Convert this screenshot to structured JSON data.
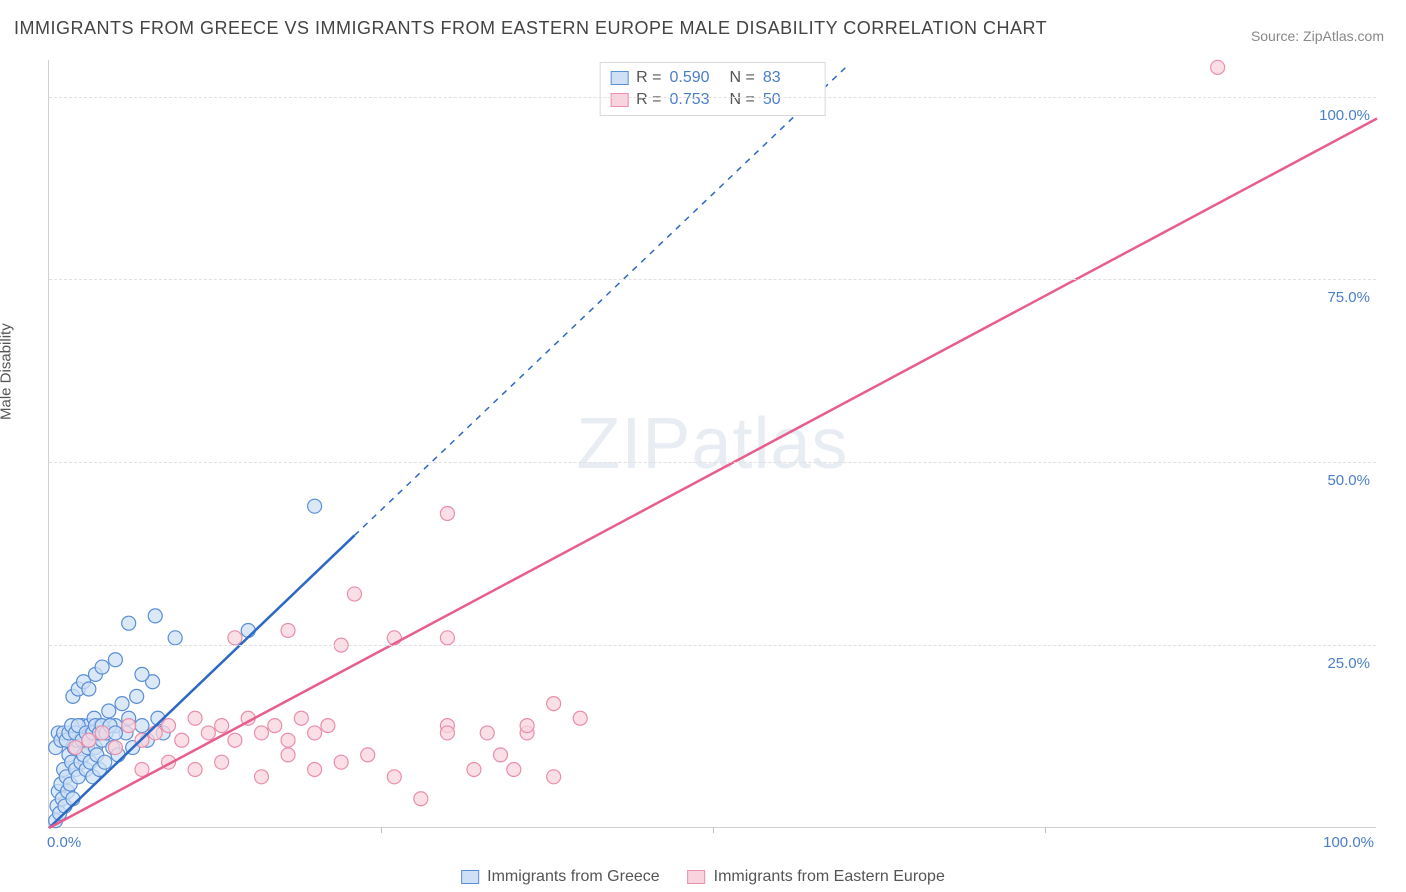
{
  "title": "IMMIGRANTS FROM GREECE VS IMMIGRANTS FROM EASTERN EUROPE MALE DISABILITY CORRELATION CHART",
  "source": "Source: ZipAtlas.com",
  "ylabel": "Male Disability",
  "watermark_a": "ZIP",
  "watermark_b": "atlas",
  "axes": {
    "xmin": 0,
    "xmax": 100,
    "ymin": 0,
    "ymax": 105,
    "x_origin_label": "0.0%",
    "x_max_label": "100.0%",
    "y_ticks": [
      {
        "v": 25,
        "label": "25.0%"
      },
      {
        "v": 50,
        "label": "50.0%"
      },
      {
        "v": 75,
        "label": "75.0%"
      },
      {
        "v": 100,
        "label": "100.0%"
      }
    ],
    "x_tick_step": 25
  },
  "colors": {
    "blue_fill": "#cfe0f5",
    "blue_stroke": "#5a8fd6",
    "blue_line": "#2d68c4",
    "pink_fill": "#f8d4de",
    "pink_stroke": "#e98fab",
    "pink_line": "#e75e8d",
    "grid": "#e0e0e0",
    "label_blue": "#4a7ec7"
  },
  "marker_radius": 7,
  "series": [
    {
      "name": "Immigrants from Greece",
      "color_key": "blue",
      "R": "0.590",
      "N": "83",
      "trend": {
        "x1": 0,
        "y1": 0,
        "x2": 23,
        "y2": 40,
        "solid_to_x": 23,
        "dash_to": {
          "x": 60,
          "y": 104
        }
      },
      "points": [
        [
          0.5,
          1
        ],
        [
          0.6,
          3
        ],
        [
          0.7,
          5
        ],
        [
          0.8,
          2
        ],
        [
          0.9,
          6
        ],
        [
          1.0,
          4
        ],
        [
          1.1,
          8
        ],
        [
          1.2,
          3
        ],
        [
          1.3,
          7
        ],
        [
          1.4,
          5
        ],
        [
          1.5,
          10
        ],
        [
          1.6,
          6
        ],
        [
          1.7,
          9
        ],
        [
          1.8,
          4
        ],
        [
          1.9,
          11
        ],
        [
          2.0,
          8
        ],
        [
          2.1,
          12
        ],
        [
          2.2,
          7
        ],
        [
          2.3,
          13
        ],
        [
          2.4,
          9
        ],
        [
          2.5,
          14
        ],
        [
          2.6,
          10
        ],
        [
          2.7,
          12
        ],
        [
          2.8,
          8
        ],
        [
          2.9,
          11
        ],
        [
          3.0,
          14
        ],
        [
          3.1,
          9
        ],
        [
          3.2,
          13
        ],
        [
          3.3,
          7
        ],
        [
          3.4,
          15
        ],
        [
          3.5,
          11
        ],
        [
          3.6,
          10
        ],
        [
          3.7,
          13
        ],
        [
          3.8,
          8
        ],
        [
          3.9,
          14
        ],
        [
          4.0,
          12
        ],
        [
          4.2,
          9
        ],
        [
          4.5,
          16
        ],
        [
          4.8,
          11
        ],
        [
          5.0,
          14
        ],
        [
          5.2,
          10
        ],
        [
          5.5,
          17
        ],
        [
          5.8,
          13
        ],
        [
          6.0,
          15
        ],
        [
          6.3,
          11
        ],
        [
          6.6,
          18
        ],
        [
          7.0,
          14
        ],
        [
          7.4,
          12
        ],
        [
          7.8,
          20
        ],
        [
          8.2,
          15
        ],
        [
          8.6,
          13
        ],
        [
          0.5,
          11
        ],
        [
          0.7,
          13
        ],
        [
          0.9,
          12
        ],
        [
          1.1,
          13
        ],
        [
          1.3,
          12
        ],
        [
          1.5,
          13
        ],
        [
          1.7,
          14
        ],
        [
          2.0,
          13
        ],
        [
          2.2,
          14
        ],
        [
          2.5,
          12
        ],
        [
          2.8,
          13
        ],
        [
          3.0,
          12
        ],
        [
          3.3,
          13
        ],
        [
          3.5,
          14
        ],
        [
          3.8,
          13
        ],
        [
          4.0,
          14
        ],
        [
          4.3,
          13
        ],
        [
          4.6,
          14
        ],
        [
          5.0,
          13
        ],
        [
          1.8,
          18
        ],
        [
          2.2,
          19
        ],
        [
          2.6,
          20
        ],
        [
          3.0,
          19
        ],
        [
          3.5,
          21
        ],
        [
          4.0,
          22
        ],
        [
          5.0,
          23
        ],
        [
          6.0,
          28
        ],
        [
          7.0,
          21
        ],
        [
          8.0,
          29
        ],
        [
          9.5,
          26
        ],
        [
          15.0,
          27
        ],
        [
          20.0,
          44
        ]
      ]
    },
    {
      "name": "Immigrants from Eastern Europe",
      "color_key": "pink",
      "R": "0.753",
      "N": "50",
      "trend": {
        "x1": 0,
        "y1": 0,
        "x2": 100,
        "y2": 97,
        "solid_to_x": 100
      },
      "points": [
        [
          2,
          11
        ],
        [
          3,
          12
        ],
        [
          4,
          13
        ],
        [
          5,
          11
        ],
        [
          6,
          14
        ],
        [
          7,
          12
        ],
        [
          8,
          13
        ],
        [
          9,
          14
        ],
        [
          10,
          12
        ],
        [
          11,
          15
        ],
        [
          12,
          13
        ],
        [
          13,
          14
        ],
        [
          14,
          12
        ],
        [
          15,
          15
        ],
        [
          16,
          13
        ],
        [
          17,
          14
        ],
        [
          18,
          12
        ],
        [
          19,
          15
        ],
        [
          20,
          13
        ],
        [
          21,
          14
        ],
        [
          7,
          8
        ],
        [
          9,
          9
        ],
        [
          11,
          8
        ],
        [
          13,
          9
        ],
        [
          16,
          7
        ],
        [
          18,
          10
        ],
        [
          20,
          8
        ],
        [
          22,
          9
        ],
        [
          24,
          10
        ],
        [
          26,
          7
        ],
        [
          28,
          4
        ],
        [
          14,
          26
        ],
        [
          18,
          27
        ],
        [
          22,
          25
        ],
        [
          26,
          26
        ],
        [
          30,
          26
        ],
        [
          30,
          14
        ],
        [
          32,
          8
        ],
        [
          35,
          8
        ],
        [
          30,
          43
        ],
        [
          38,
          17
        ],
        [
          38,
          7
        ],
        [
          23,
          32
        ],
        [
          40,
          15
        ],
        [
          34,
          10
        ],
        [
          36,
          13
        ],
        [
          30,
          13
        ],
        [
          33,
          13
        ],
        [
          36,
          14
        ],
        [
          88,
          104
        ]
      ]
    }
  ],
  "legend_bottom": [
    {
      "color_key": "blue",
      "label": "Immigrants from Greece"
    },
    {
      "color_key": "pink",
      "label": "Immigrants from Eastern Europe"
    }
  ]
}
